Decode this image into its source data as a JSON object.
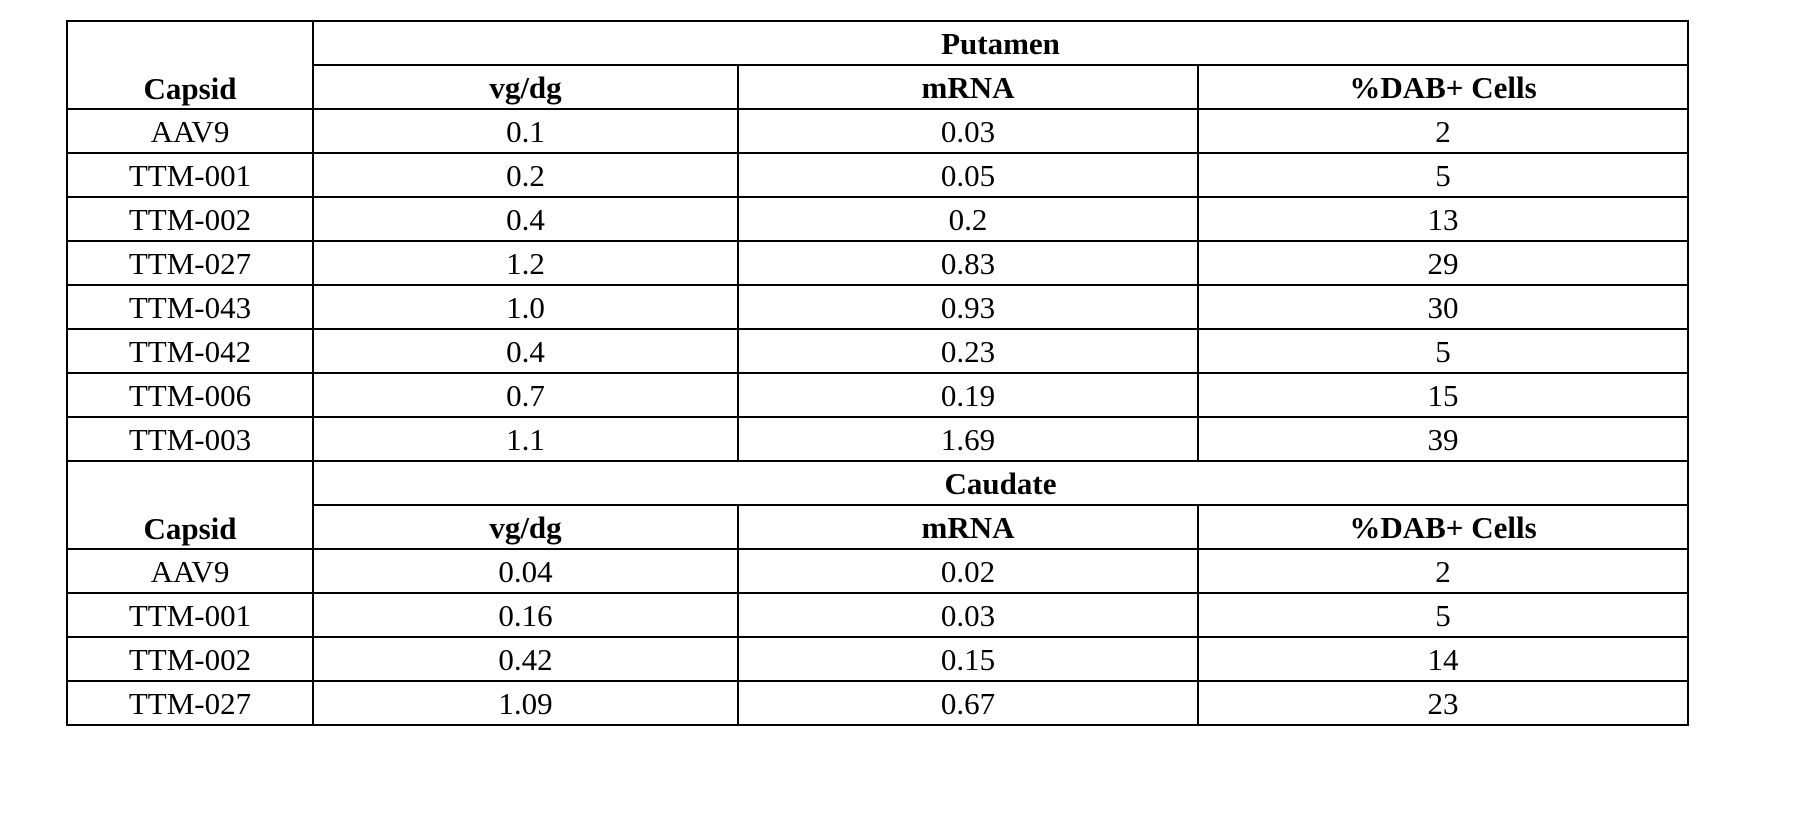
{
  "table": {
    "sections": [
      {
        "region": "Putamen",
        "headers": [
          "Capsid",
          "vg/dg",
          "mRNA",
          "%DAB+ Cells"
        ],
        "rows": [
          [
            "AAV9",
            "0.1",
            "0.03",
            "2"
          ],
          [
            "TTM-001",
            "0.2",
            "0.05",
            "5"
          ],
          [
            "TTM-002",
            "0.4",
            "0.2",
            "13"
          ],
          [
            "TTM-027",
            "1.2",
            "0.83",
            "29"
          ],
          [
            "TTM-043",
            "1.0",
            "0.93",
            "30"
          ],
          [
            "TTM-042",
            "0.4",
            "0.23",
            "5"
          ],
          [
            "TTM-006",
            "0.7",
            "0.19",
            "15"
          ],
          [
            "TTM-003",
            "1.1",
            "1.69",
            "39"
          ]
        ]
      },
      {
        "region": "Caudate",
        "headers": [
          "Capsid",
          "vg/dg",
          "mRNA",
          "%DAB+ Cells"
        ],
        "rows": [
          [
            "AAV9",
            "0.04",
            "0.02",
            "2"
          ],
          [
            "TTM-001",
            "0.16",
            "0.03",
            "5"
          ],
          [
            "TTM-002",
            "0.42",
            "0.15",
            "14"
          ],
          [
            "TTM-027",
            "1.09",
            "0.67",
            "23"
          ]
        ]
      }
    ]
  }
}
